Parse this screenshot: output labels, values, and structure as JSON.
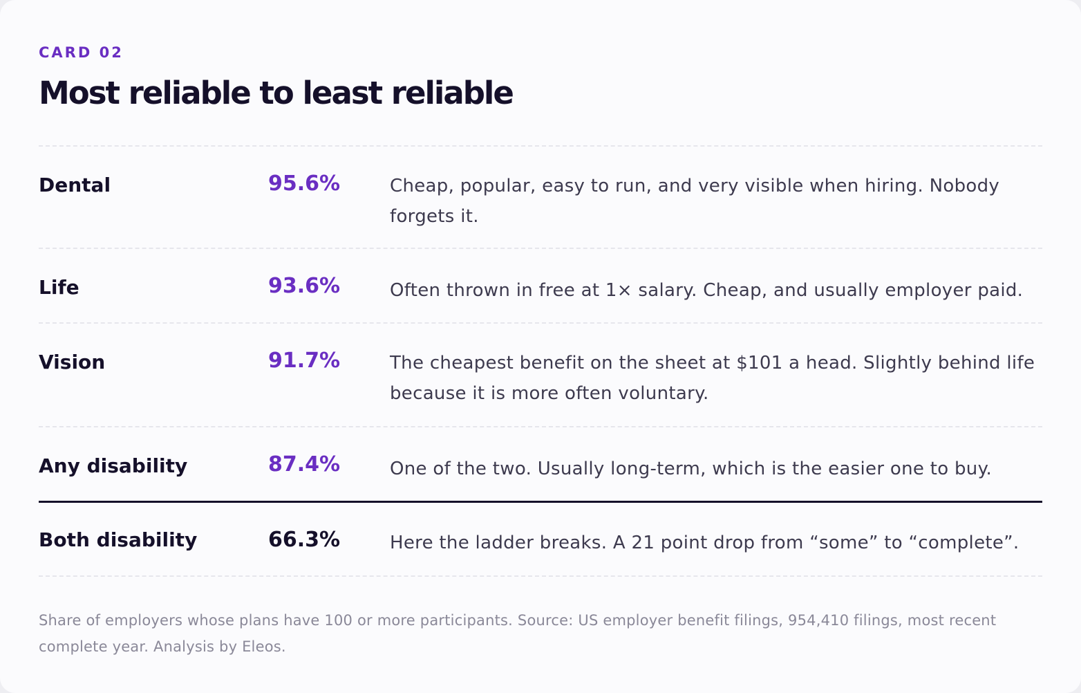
{
  "card": {
    "eyebrow": "CARD 02",
    "title": "Most reliable to least reliable"
  },
  "rows": [
    {
      "name": "Dental",
      "value": "95.6%",
      "description": "Cheap, popular, easy to run, and very visible when hiring. Nobody forgets it."
    },
    {
      "name": "Life",
      "value": "93.6%",
      "description": "Often thrown in free at 1× salary. Cheap, and usually employer paid."
    },
    {
      "name": "Vision",
      "value": "91.7%",
      "description": "The cheapest benefit on the sheet at $101 a head. Slightly behind life because it is more often voluntary."
    },
    {
      "name": "Any disability",
      "value": "87.4%",
      "description": "One of the two. Usually long-term, which is the easier one to buy."
    },
    {
      "name": "Both disability",
      "value": "66.3%",
      "description": "Here the ladder breaks. A 21 point drop from “some” to “complete”."
    }
  ],
  "footnote": "Share of employers whose plans have 100 or more participants. Source: US employer benefit filings, 954,410 filings, most recent complete year. Analysis by Eleos.",
  "colors": {
    "accent": "#6a2ec2",
    "heading": "#15102a",
    "body_text": "#3d3a4e",
    "muted_text": "#8a8898",
    "card_background": "#fbfbfd"
  }
}
